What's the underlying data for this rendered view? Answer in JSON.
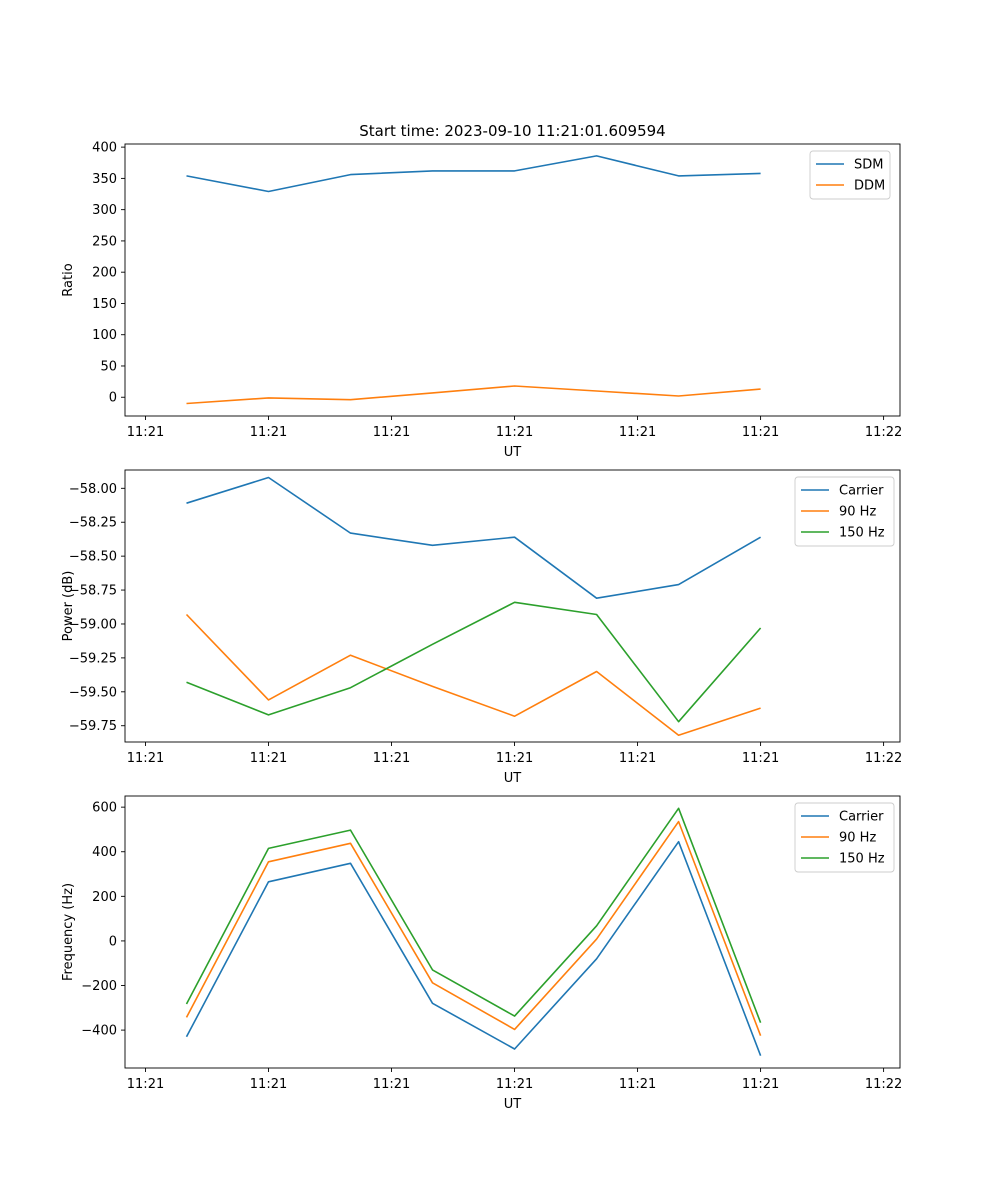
{
  "chart_data": [
    {
      "type": "line",
      "title": "Start time: 2023-09-10 11:21:01.609594",
      "xlabel": "UT",
      "ylabel": "Ratio",
      "x": [
        1,
        2,
        3,
        4,
        5,
        6,
        7,
        8
      ],
      "xlim": [
        0.25,
        9.7
      ],
      "ylim": [
        -30,
        405
      ],
      "xticks": [
        0.5,
        2,
        3.5,
        5,
        6.5,
        8,
        9.5
      ],
      "xticklabels": [
        "11:21",
        "11:21",
        "11:21",
        "11:21",
        "11:21",
        "11:21",
        "11:22"
      ],
      "yticks": [
        0,
        50,
        100,
        150,
        200,
        250,
        300,
        350,
        400
      ],
      "legend": "top-right",
      "series": [
        {
          "name": "SDM",
          "color": "#1f77b4",
          "values": [
            354,
            329,
            356,
            362,
            362,
            386,
            354,
            358
          ]
        },
        {
          "name": "DDM",
          "color": "#ff7f0e",
          "values": [
            -10,
            -1,
            -4,
            7,
            18,
            10,
            2,
            13
          ]
        }
      ]
    },
    {
      "type": "line",
      "title": "",
      "xlabel": "UT",
      "ylabel": "Power (dB)",
      "x": [
        1,
        2,
        3,
        4,
        5,
        6,
        7,
        8
      ],
      "xlim": [
        0.25,
        9.7
      ],
      "ylim": [
        -59.87,
        -57.865
      ],
      "xticks": [
        0.5,
        2,
        3.5,
        5,
        6.5,
        8,
        9.5
      ],
      "xticklabels": [
        "11:21",
        "11:21",
        "11:21",
        "11:21",
        "11:21",
        "11:21",
        "11:22"
      ],
      "yticks": [
        -59.75,
        -59.5,
        -59.25,
        -59.0,
        -58.75,
        -58.5,
        -58.25,
        -58.0
      ],
      "yticklabels": [
        "−59.75",
        "−59.50",
        "−59.25",
        "−59.00",
        "−58.75",
        "−58.50",
        "−58.25",
        "−58.00"
      ],
      "legend": "top-right",
      "series": [
        {
          "name": "Carrier",
          "color": "#1f77b4",
          "values": [
            -58.11,
            -57.92,
            -58.33,
            -58.42,
            -58.36,
            -58.81,
            -58.71,
            -58.36
          ]
        },
        {
          "name": "90 Hz",
          "color": "#ff7f0e",
          "values": [
            -58.93,
            -59.56,
            -59.23,
            -59.46,
            -59.68,
            -59.35,
            -59.82,
            -59.62
          ]
        },
        {
          "name": "150 Hz",
          "color": "#2ca02c",
          "values": [
            -59.43,
            -59.67,
            -59.47,
            -59.15,
            -58.84,
            -58.93,
            -59.72,
            -59.03
          ]
        }
      ]
    },
    {
      "type": "line",
      "title": "",
      "xlabel": "UT",
      "ylabel": "Frequency (Hz)",
      "x": [
        1,
        2,
        3,
        4,
        5,
        6,
        7,
        8
      ],
      "xlim": [
        0.25,
        9.7
      ],
      "ylim": [
        -570,
        650
      ],
      "xticks": [
        0.5,
        2,
        3.5,
        5,
        6.5,
        8,
        9.5
      ],
      "xticklabels": [
        "11:21",
        "11:21",
        "11:21",
        "11:21",
        "11:21",
        "11:21",
        "11:22"
      ],
      "yticks": [
        -400,
        -200,
        0,
        200,
        400,
        600
      ],
      "yticklabels": [
        "−400",
        "−200",
        "0",
        "200",
        "400",
        "600"
      ],
      "legend": "top-right",
      "series": [
        {
          "name": "Carrier",
          "color": "#1f77b4",
          "values": [
            -430,
            265,
            348,
            -280,
            -485,
            -80,
            445,
            -515
          ]
        },
        {
          "name": "90 Hz",
          "color": "#ff7f0e",
          "values": [
            -343,
            355,
            438,
            -188,
            -397,
            8,
            535,
            -425
          ]
        },
        {
          "name": "150 Hz",
          "color": "#2ca02c",
          "values": [
            -283,
            415,
            497,
            -130,
            -337,
            68,
            595,
            -367
          ]
        }
      ]
    }
  ]
}
